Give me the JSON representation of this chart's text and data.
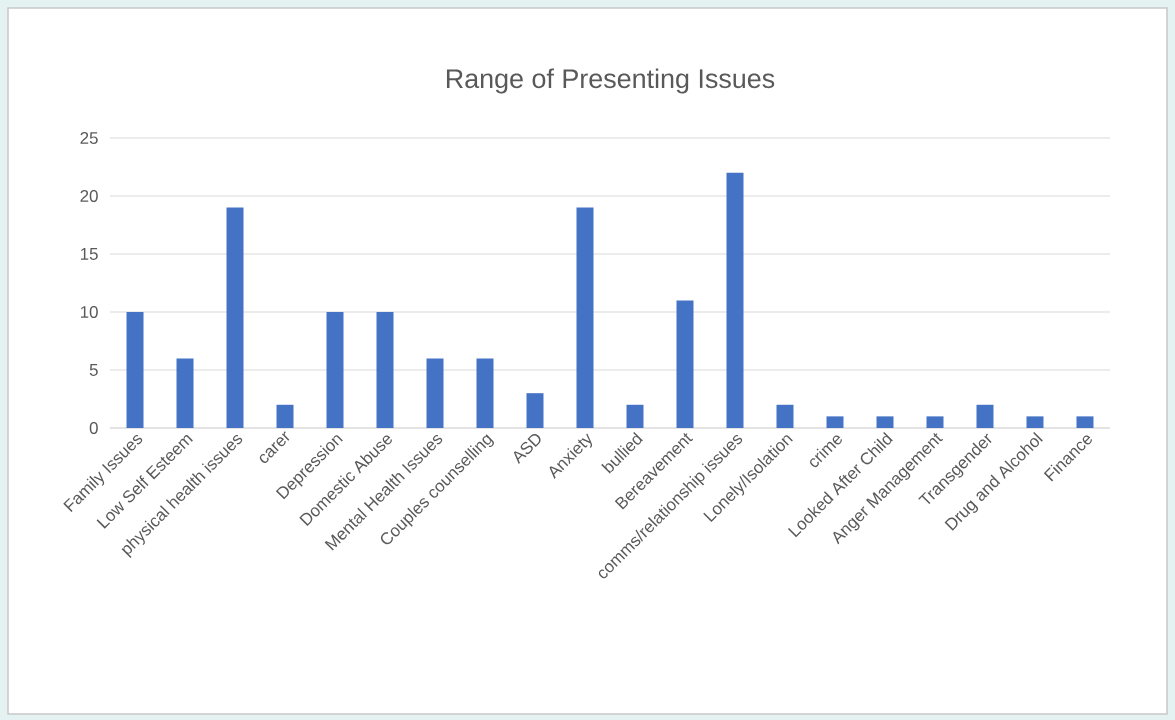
{
  "chart_data": {
    "type": "bar",
    "title": "Range of Presenting Issues",
    "categories": [
      "Family Issues",
      "Low Self Esteem",
      "physical health issues",
      "carer",
      "Depression",
      "Domestic Abuse",
      "Mental Health Issues",
      "Couples counselling",
      "ASD",
      "Anxiety",
      "bullied",
      "Bereavement",
      "comms/relationship issues",
      "Lonely/Isolation",
      "crime",
      "Looked After Child",
      "Anger Management",
      "Transgender",
      "Drug and Alcohol",
      "Finance"
    ],
    "values": [
      10,
      6,
      19,
      2,
      10,
      10,
      6,
      6,
      3,
      19,
      2,
      11,
      22,
      2,
      1,
      1,
      1,
      2,
      1,
      1
    ],
    "color": "#4472c4",
    "ylim": [
      0,
      25
    ],
    "yticks": [
      0,
      5,
      10,
      15,
      20,
      25
    ],
    "grid": "y"
  }
}
